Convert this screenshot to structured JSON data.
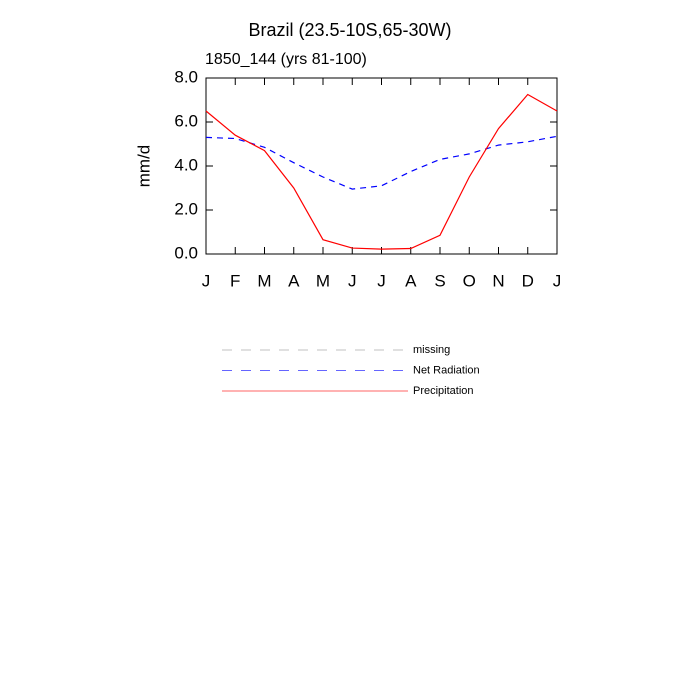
{
  "chart_data": {
    "type": "line",
    "title": "Brazil (23.5-10S,65-30W)",
    "subtitle": "1850_144 (yrs 81-100)",
    "y_label": "mm/d",
    "categories": [
      "J",
      "F",
      "M",
      "A",
      "M",
      "J",
      "J",
      "A",
      "S",
      "O",
      "N",
      "D",
      "J"
    ],
    "series": [
      {
        "name": "missing",
        "color": "#999999",
        "dash": true,
        "values": [
          null,
          null,
          null,
          null,
          null,
          null,
          null,
          null,
          null,
          null,
          null,
          null,
          null
        ]
      },
      {
        "name": "Net Radiation",
        "color": "#0000ff",
        "dash": true,
        "values": [
          5.3,
          5.25,
          4.85,
          4.15,
          3.5,
          2.95,
          3.1,
          3.75,
          4.3,
          4.55,
          4.95,
          5.1,
          5.35
        ]
      },
      {
        "name": "Precipitation",
        "color": "#ff0000",
        "dash": false,
        "values": [
          6.5,
          5.4,
          4.7,
          3.0,
          0.65,
          0.27,
          0.22,
          0.25,
          0.85,
          3.5,
          5.7,
          7.25,
          6.5
        ]
      }
    ],
    "ylim": [
      0,
      8
    ],
    "yticks": [
      {
        "value": 0,
        "label": "0.0"
      },
      {
        "value": 2,
        "label": "2.0"
      },
      {
        "value": 4,
        "label": "4.0"
      },
      {
        "value": 6,
        "label": "6.0"
      },
      {
        "value": 8,
        "label": "8.0"
      }
    ],
    "grid": false
  }
}
